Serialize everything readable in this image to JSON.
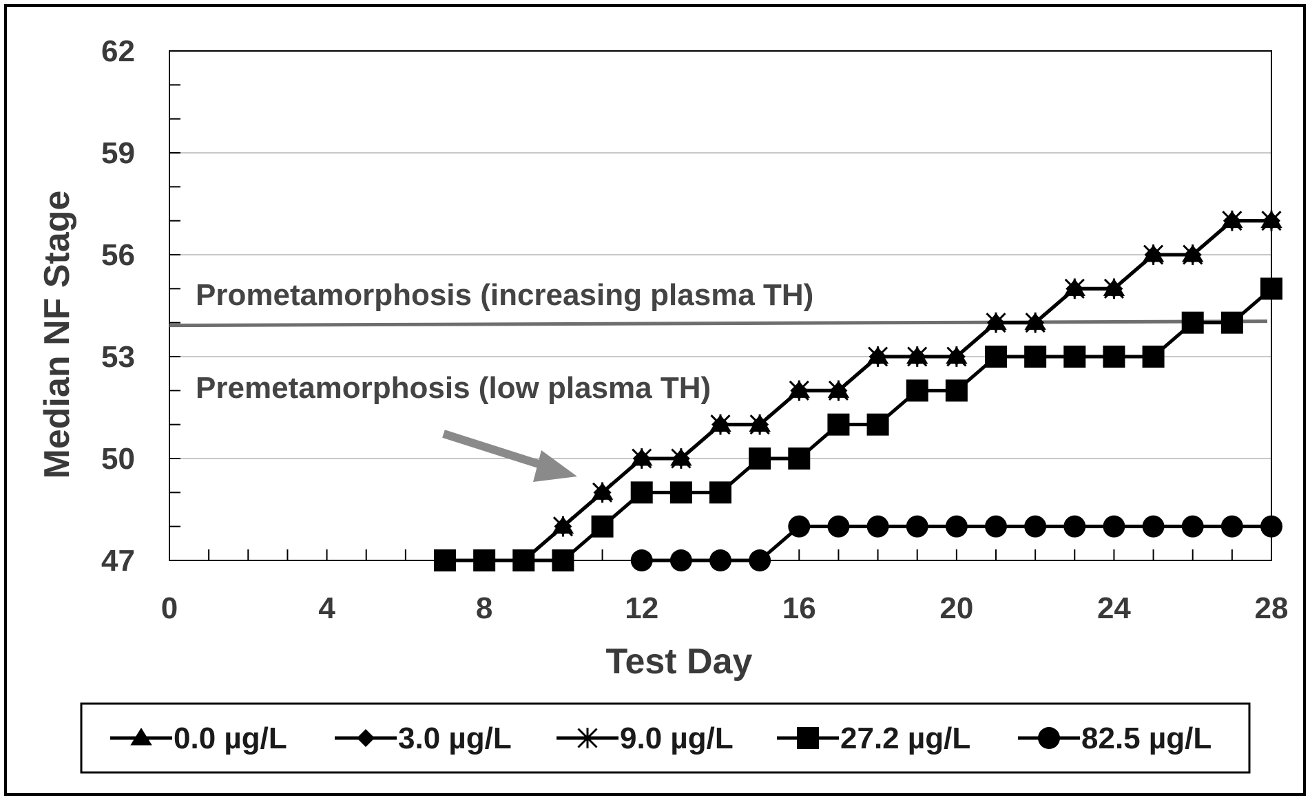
{
  "chart_data": {
    "type": "line",
    "title": "",
    "xlabel": "Test Day",
    "ylabel": "Median NF Stage",
    "xlim": [
      0,
      28
    ],
    "ylim": [
      47,
      62
    ],
    "xticks": [
      0,
      4,
      8,
      12,
      16,
      20,
      24,
      28
    ],
    "yticks": [
      47,
      50,
      53,
      56,
      59,
      62
    ],
    "grid": "horizontal",
    "legend_position": "bottom",
    "threshold_stage": 54,
    "annotations": {
      "above": "Prometamorphosis (increasing plasma TH)",
      "below": "Premetamorphosis (low plasma TH)"
    },
    "arrow_color": "#8a8a8a",
    "line_color": "#000000",
    "threshold_color": "#6e6e6e",
    "series": [
      {
        "name": "0.0 µg/L",
        "marker": "triangle",
        "points": [
          [
            9,
            47
          ],
          [
            10,
            48
          ],
          [
            11,
            49
          ],
          [
            12,
            50
          ],
          [
            13,
            50
          ],
          [
            14,
            51
          ],
          [
            15,
            51
          ],
          [
            16,
            52
          ],
          [
            17,
            52
          ],
          [
            18,
            53
          ],
          [
            19,
            53
          ],
          [
            20,
            53
          ],
          [
            21,
            54
          ],
          [
            22,
            54
          ],
          [
            23,
            55
          ],
          [
            24,
            55
          ],
          [
            25,
            56
          ],
          [
            26,
            56
          ],
          [
            27,
            57
          ],
          [
            28,
            57
          ]
        ]
      },
      {
        "name": "3.0 µg/L",
        "marker": "diamond",
        "points": [
          [
            9,
            47
          ],
          [
            10,
            48
          ],
          [
            11,
            49
          ],
          [
            12,
            50
          ],
          [
            13,
            50
          ],
          [
            14,
            51
          ],
          [
            15,
            51
          ],
          [
            16,
            52
          ],
          [
            17,
            52
          ],
          [
            18,
            53
          ],
          [
            19,
            53
          ],
          [
            20,
            53
          ],
          [
            21,
            54
          ],
          [
            22,
            54
          ],
          [
            23,
            55
          ],
          [
            24,
            55
          ],
          [
            25,
            56
          ],
          [
            26,
            56
          ],
          [
            27,
            57
          ],
          [
            28,
            57
          ]
        ]
      },
      {
        "name": "9.0 µg/L",
        "marker": "star",
        "points": [
          [
            9,
            47
          ],
          [
            10,
            48
          ],
          [
            11,
            49
          ],
          [
            12,
            50
          ],
          [
            13,
            50
          ],
          [
            14,
            51
          ],
          [
            15,
            51
          ],
          [
            16,
            52
          ],
          [
            17,
            52
          ],
          [
            18,
            53
          ],
          [
            19,
            53
          ],
          [
            20,
            53
          ],
          [
            21,
            54
          ],
          [
            22,
            54
          ],
          [
            23,
            55
          ],
          [
            24,
            55
          ],
          [
            25,
            56
          ],
          [
            26,
            56
          ],
          [
            27,
            57
          ],
          [
            28,
            57
          ]
        ]
      },
      {
        "name": "27.2 µg/L",
        "marker": "square",
        "points": [
          [
            7,
            47
          ],
          [
            8,
            47
          ],
          [
            9,
            47
          ],
          [
            10,
            47
          ],
          [
            11,
            48
          ],
          [
            12,
            49
          ],
          [
            13,
            49
          ],
          [
            14,
            49
          ],
          [
            15,
            50
          ],
          [
            16,
            50
          ],
          [
            17,
            51
          ],
          [
            18,
            51
          ],
          [
            19,
            52
          ],
          [
            20,
            52
          ],
          [
            21,
            53
          ],
          [
            22,
            53
          ],
          [
            23,
            53
          ],
          [
            24,
            53
          ],
          [
            25,
            53
          ],
          [
            26,
            54
          ],
          [
            27,
            54
          ],
          [
            28,
            55
          ]
        ]
      },
      {
        "name": "82.5 µg/L",
        "marker": "circle",
        "points": [
          [
            12,
            47
          ],
          [
            13,
            47
          ],
          [
            14,
            47
          ],
          [
            15,
            47
          ],
          [
            16,
            48
          ],
          [
            17,
            48
          ],
          [
            18,
            48
          ],
          [
            19,
            48
          ],
          [
            20,
            48
          ],
          [
            21,
            48
          ],
          [
            22,
            48
          ],
          [
            23,
            48
          ],
          [
            24,
            48
          ],
          [
            25,
            48
          ],
          [
            26,
            48
          ],
          [
            27,
            48
          ],
          [
            28,
            48
          ]
        ]
      }
    ]
  }
}
